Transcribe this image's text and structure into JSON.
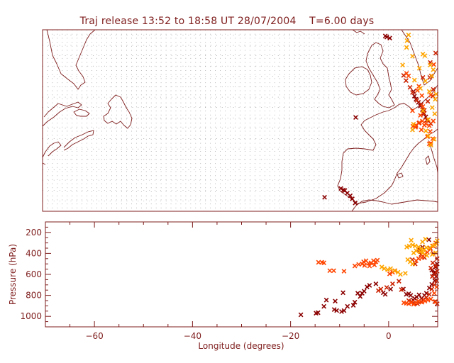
{
  "title": "Traj release 13:52 to 18:58 UT 28/07/2004    T=6.00 days",
  "colors": {
    "frame": "#7f1d1d",
    "dark_red": "#8b0000",
    "red": "#cc2200",
    "orange_red": "#ff4500",
    "orange": "#ffa500"
  },
  "chart_data": [
    {
      "type": "scatter",
      "panel": "map",
      "title": "Traj release 13:52 to 18:58 UT 28/07/2004    T=6.00 days",
      "xlim": [
        -70,
        10
      ],
      "ylim": [
        30,
        65
      ],
      "marker": "x",
      "grid": true,
      "grid_style": "dotted",
      "series": [
        {
          "color": "#8b0000",
          "points": [
            [
              -0.6,
              63.8
            ],
            [
              -0.3,
              63.6
            ],
            [
              0.3,
              63.4
            ],
            [
              -6.6,
              48.1
            ],
            [
              -12.9,
              32.7
            ],
            [
              -9.6,
              34.4
            ],
            [
              -9.1,
              34.1
            ],
            [
              -8.8,
              34.0
            ],
            [
              -8.3,
              33.5
            ],
            [
              -7.7,
              33.0
            ],
            [
              -7.3,
              32.4
            ],
            [
              -6.7,
              31.6
            ],
            [
              5.1,
              53.1
            ],
            [
              5.3,
              52.2
            ],
            [
              5.6,
              51.6
            ],
            [
              6.1,
              51.0
            ],
            [
              6.5,
              50.3
            ],
            [
              6.9,
              49.6
            ],
            [
              7.2,
              48.9
            ],
            [
              7.6,
              48.2
            ],
            [
              8.0,
              47.6
            ]
          ]
        },
        {
          "color": "#cc2200",
          "points": [
            [
              3.1,
              56.2
            ],
            [
              3.6,
              55.2
            ],
            [
              4.4,
              53.9
            ],
            [
              4.9,
              52.9
            ],
            [
              5.8,
              51.4
            ],
            [
              6.7,
              50.6
            ],
            [
              7.2,
              48.8
            ],
            [
              7.8,
              47.6
            ],
            [
              8.6,
              46.9
            ],
            [
              8.4,
              55.8
            ],
            [
              8.7,
              56.1
            ],
            [
              8.0,
              51.2
            ],
            [
              9.1,
              53.5
            ],
            [
              9.0,
              52.2
            ],
            [
              6.2,
              47.0
            ],
            [
              5.5,
              46.4
            ],
            [
              7.0,
              55.8
            ],
            [
              7.3,
              49.5
            ],
            [
              8.5,
              58.7
            ],
            [
              9.6,
              60.5
            ]
          ]
        },
        {
          "color": "#ff4500",
          "points": [
            [
              5.0,
              46.4
            ],
            [
              5.6,
              46.6
            ],
            [
              6.3,
              47.1
            ],
            [
              6.9,
              47.4
            ],
            [
              7.6,
              46.9
            ],
            [
              8.3,
              46.5
            ],
            [
              9.1,
              47.4
            ],
            [
              7.9,
              44.4
            ],
            [
              8.5,
              45.4
            ],
            [
              8.6,
              43.1
            ],
            [
              3.7,
              56.6
            ],
            [
              4.1,
              56.1
            ],
            [
              9.2,
              58.3
            ],
            [
              8.6,
              52.4
            ],
            [
              5.9,
              53.3
            ],
            [
              6.2,
              54.1
            ],
            [
              7.0,
              50.2
            ],
            [
              5.5,
              46.2
            ],
            [
              6.7,
              45.7
            ],
            [
              7.3,
              46.6
            ],
            [
              8.3,
              43.0
            ],
            [
              9.0,
              44.0
            ],
            [
              4.9,
              49.4
            ],
            [
              6.5,
              48.5
            ],
            [
              6.8,
              52.3
            ]
          ]
        },
        {
          "color": "#ffa500",
          "points": [
            [
              4.1,
              64.0
            ],
            [
              3.7,
              61.6
            ],
            [
              4.9,
              59.9
            ],
            [
              7.0,
              60.3
            ],
            [
              7.4,
              60.0
            ],
            [
              8.5,
              58.2
            ],
            [
              9.1,
              57.3
            ],
            [
              6.3,
              57.6
            ],
            [
              5.3,
              55.3
            ],
            [
              7.5,
              55.1
            ],
            [
              8.8,
              56.1
            ],
            [
              6.5,
              53.7
            ],
            [
              8.3,
              53.1
            ],
            [
              9.5,
              51.6
            ],
            [
              8.9,
              50.0
            ],
            [
              7.0,
              49.4
            ],
            [
              8.1,
              47.7
            ],
            [
              5.1,
              46.8
            ],
            [
              4.9,
              45.7
            ],
            [
              7.6,
              45.5
            ],
            [
              8.1,
              44.5
            ],
            [
              9.3,
              43.9
            ],
            [
              8.6,
              42.8
            ],
            [
              9.4,
              48.8
            ],
            [
              9.7,
              52.6
            ],
            [
              2.9,
              58.2
            ],
            [
              3.8,
              62.9
            ]
          ]
        }
      ]
    },
    {
      "type": "scatter",
      "panel": "pressure",
      "xlabel": "Longitude  (degrees)",
      "ylabel": "Pressure  (hPa)",
      "xlim": [
        -70,
        10
      ],
      "ylim": [
        1100,
        100
      ],
      "xticks": [
        -60,
        -40,
        -20,
        0
      ],
      "xtick_labels": [
        "−60",
        "−40",
        "−20",
        "0"
      ],
      "yticks": [
        200,
        400,
        600,
        800,
        1000
      ],
      "yticks_minor_step": 50,
      "marker": "x",
      "grid": false,
      "series": [
        {
          "color": "#8b0000",
          "points": [
            [
              -17.9,
              985
            ],
            [
              -14.8,
              970
            ],
            [
              -14.4,
              965
            ],
            [
              -13.2,
              905
            ],
            [
              -12.7,
              845
            ],
            [
              -11.1,
              935
            ],
            [
              -10.6,
              945
            ],
            [
              -9.6,
              955
            ],
            [
              -9.1,
              945
            ],
            [
              -8.4,
              905
            ],
            [
              -7.2,
              895
            ],
            [
              -6.9,
              865
            ],
            [
              -5.8,
              810
            ],
            [
              -5.4,
              780
            ],
            [
              -5.0,
              760
            ],
            [
              -4.4,
              720
            ],
            [
              -3.9,
              705
            ],
            [
              -2.6,
              690
            ],
            [
              -1.1,
              775
            ],
            [
              -0.7,
              790
            ],
            [
              0.4,
              740
            ],
            [
              -10.9,
              855
            ],
            [
              -9.3,
              775
            ],
            [
              -6.3,
              780
            ],
            [
              3.0,
              740
            ],
            [
              3.6,
              790
            ],
            [
              4.1,
              785
            ],
            [
              4.5,
              800
            ],
            [
              5.0,
              845
            ],
            [
              5.3,
              830
            ],
            [
              5.7,
              815
            ],
            [
              6.2,
              795
            ],
            [
              6.7,
              830
            ],
            [
              7.3,
              800
            ],
            [
              7.7,
              780
            ],
            [
              8.3,
              730
            ],
            [
              8.8,
              695
            ],
            [
              9.4,
              660
            ],
            [
              9.7,
              620
            ],
            [
              9.5,
              580
            ],
            [
              9.2,
              590
            ],
            [
              8.8,
              560
            ],
            [
              9.6,
              530
            ],
            [
              9.9,
              500
            ],
            [
              6.3,
              360
            ],
            [
              6.9,
              340
            ],
            [
              8.2,
              270
            ]
          ]
        },
        {
          "color": "#cc2200",
          "points": [
            [
              -2.1,
              755
            ],
            [
              -1.6,
              740
            ],
            [
              -0.4,
              725
            ],
            [
              0.8,
              690
            ],
            [
              2.1,
              665
            ],
            [
              2.6,
              745
            ],
            [
              4.1,
              850
            ],
            [
              4.7,
              860
            ],
            [
              5.2,
              875
            ],
            [
              5.9,
              880
            ],
            [
              6.6,
              860
            ],
            [
              7.1,
              840
            ],
            [
              7.7,
              820
            ],
            [
              8.3,
              790
            ],
            [
              8.8,
              740
            ],
            [
              9.3,
              700
            ],
            [
              9.8,
              660
            ],
            [
              8.9,
              620
            ],
            [
              9.4,
              600
            ],
            [
              9.9,
              570
            ],
            [
              8.6,
              540
            ],
            [
              9.6,
              520
            ],
            [
              9.0,
              490
            ],
            [
              9.9,
              450
            ],
            [
              9.1,
              400
            ],
            [
              8.5,
              350
            ],
            [
              9.9,
              880
            ],
            [
              9.4,
              860
            ],
            [
              7.3,
              440
            ],
            [
              6.6,
              410
            ],
            [
              4.8,
              460
            ],
            [
              5.4,
              500
            ],
            [
              6.3,
              370
            ]
          ]
        },
        {
          "color": "#ff4500",
          "points": [
            [
              -14.3,
              485
            ],
            [
              -13.6,
              485
            ],
            [
              -13.2,
              490
            ],
            [
              -12.0,
              565
            ],
            [
              -11.2,
              565
            ],
            [
              -9.1,
              570
            ],
            [
              -6.9,
              520
            ],
            [
              -6.1,
              505
            ],
            [
              -5.1,
              480
            ],
            [
              -4.6,
              470
            ],
            [
              -4.1,
              495
            ],
            [
              -3.6,
              490
            ],
            [
              -3.1,
              470
            ],
            [
              -2.6,
              480
            ],
            [
              -2.3,
              465
            ],
            [
              -5.4,
              500
            ],
            [
              -4.9,
              515
            ],
            [
              -3.9,
              520
            ],
            [
              -2.9,
              510
            ],
            [
              0.2,
              595
            ],
            [
              0.8,
              580
            ],
            [
              1.3,
              565
            ],
            [
              3.1,
              870
            ],
            [
              3.6,
              875
            ],
            [
              4.1,
              880
            ],
            [
              4.6,
              870
            ],
            [
              5.1,
              885
            ],
            [
              5.6,
              870
            ],
            [
              6.1,
              855
            ],
            [
              6.8,
              865
            ],
            [
              7.4,
              855
            ],
            [
              8.0,
              845
            ],
            [
              8.6,
              835
            ],
            [
              9.6,
              860
            ],
            [
              9.3,
              780
            ],
            [
              9.8,
              720
            ],
            [
              6.8,
              440
            ],
            [
              7.3,
              410
            ],
            [
              7.9,
              390
            ],
            [
              8.5,
              360
            ],
            [
              9.1,
              330
            ],
            [
              9.6,
              300
            ],
            [
              6.1,
              450
            ],
            [
              5.6,
              470
            ]
          ]
        },
        {
          "color": "#ffa500",
          "points": [
            [
              -1.4,
              530
            ],
            [
              -0.9,
              545
            ],
            [
              -0.2,
              555
            ],
            [
              0.4,
              545
            ],
            [
              1.2,
              565
            ],
            [
              1.9,
              580
            ],
            [
              2.4,
              600
            ],
            [
              3.7,
              340
            ],
            [
              4.2,
              330
            ],
            [
              4.9,
              320
            ],
            [
              5.4,
              330
            ],
            [
              6.1,
              340
            ],
            [
              6.6,
              355
            ],
            [
              7.2,
              365
            ],
            [
              7.7,
              345
            ],
            [
              8.3,
              350
            ],
            [
              8.9,
              330
            ],
            [
              9.4,
              320
            ],
            [
              9.8,
              305
            ],
            [
              5.1,
              395
            ],
            [
              5.6,
              375
            ],
            [
              6.4,
              385
            ],
            [
              7.0,
              395
            ],
            [
              7.8,
              420
            ],
            [
              4.4,
              480
            ],
            [
              4.9,
              500
            ],
            [
              3.9,
              460
            ],
            [
              4.6,
              275
            ],
            [
              9.9,
              280
            ],
            [
              6.9,
              290
            ],
            [
              7.5,
              265
            ],
            [
              8.9,
              410
            ],
            [
              9.6,
              395
            ],
            [
              3.4,
              590
            ]
          ]
        }
      ]
    }
  ]
}
